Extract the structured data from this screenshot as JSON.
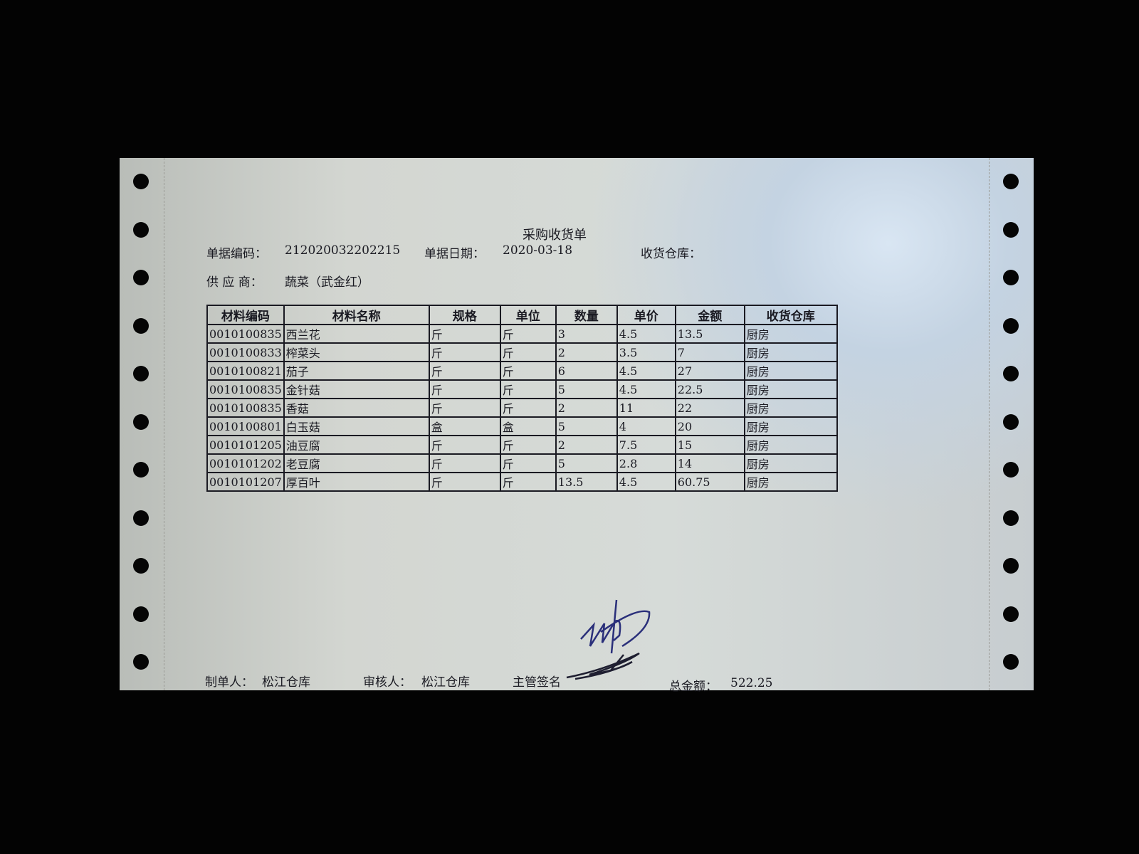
{
  "title": "采购收货单",
  "header": {
    "doc_no_label": "单据编码：",
    "doc_no": "212020032202215",
    "date_label": "单据日期：",
    "date": "2020-03-18",
    "warehouse_label": "收货仓库：",
    "supplier_label": "供 应 商：",
    "supplier": "蔬菜（武金红）"
  },
  "table": {
    "columns": [
      "材料编码",
      "材料名称",
      "规格",
      "单位",
      "数量",
      "单价",
      "金额",
      "收货仓库"
    ],
    "rows": [
      [
        "0010100835",
        "西兰花",
        "斤",
        "斤",
        "3",
        "4.5",
        "13.5",
        "厨房"
      ],
      [
        "0010100833",
        "榨菜头",
        "斤",
        "斤",
        "2",
        "3.5",
        "7",
        "厨房"
      ],
      [
        "0010100821",
        "茄子",
        "斤",
        "斤",
        "6",
        "4.5",
        "27",
        "厨房"
      ],
      [
        "0010100835",
        "金针菇",
        "斤",
        "斤",
        "5",
        "4.5",
        "22.5",
        "厨房"
      ],
      [
        "0010100835",
        "香菇",
        "斤",
        "斤",
        "2",
        "11",
        "22",
        "厨房"
      ],
      [
        "0010100801",
        "白玉菇",
        "盒",
        "盒",
        "5",
        "4",
        "20",
        "厨房"
      ],
      [
        "0010101205",
        "油豆腐",
        "斤",
        "斤",
        "2",
        "7.5",
        "15",
        "厨房"
      ],
      [
        "0010101202",
        "老豆腐",
        "斤",
        "斤",
        "5",
        "2.8",
        "14",
        "厨房"
      ],
      [
        "0010101207",
        "厚百叶",
        "斤",
        "斤",
        "13.5",
        "4.5",
        "60.75",
        "厨房"
      ]
    ]
  },
  "footer": {
    "maker_label": "制单人：",
    "maker": "松江仓库",
    "reviewer_label": "审核人：",
    "reviewer": "松江仓库",
    "supervisor_label": "主管签名",
    "total_label": "总金额：",
    "total": "522.25"
  },
  "colors": {
    "ink": "#1a1a22",
    "signature": "#2a2f7a",
    "background": "#030303"
  }
}
